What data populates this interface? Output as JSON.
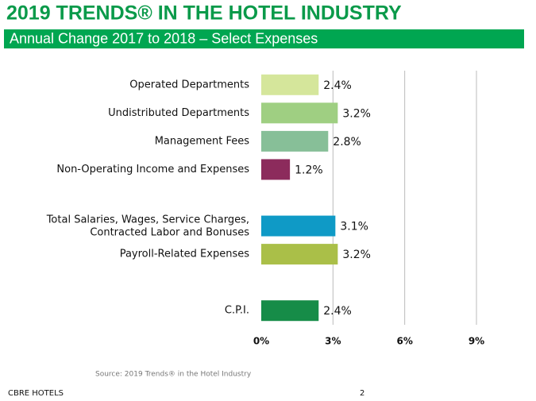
{
  "header": {
    "title": "2019 TRENDS® IN THE HOTEL INDUSTRY",
    "subtitle": "Annual Change 2017 to 2018 – Select Expenses"
  },
  "chart_data": {
    "type": "bar",
    "orientation": "horizontal",
    "categories": [
      "Operated Departments",
      "Undistributed Departments",
      "Management Fees",
      "Non-Operating Income and Expenses",
      null,
      "Total Salaries, Wages, Service Charges,\nContracted Labor and Bonuses",
      "Payroll-Related Expenses",
      null,
      "C.P.I."
    ],
    "values": [
      2.4,
      3.2,
      2.8,
      1.2,
      null,
      3.1,
      3.2,
      null,
      2.4
    ],
    "value_labels": [
      "2.4%",
      "3.2%",
      "2.8%",
      "1.2%",
      null,
      "3.1%",
      "3.2%",
      null,
      "2.4%"
    ],
    "colors": [
      "#d5e69b",
      "#9fcf82",
      "#87bf98",
      "#8c2b5c",
      null,
      "#0f9ac6",
      "#aabf48",
      null,
      "#168c48"
    ],
    "xlim": [
      0,
      9
    ],
    "xticks": [
      {
        "value": 0,
        "label": "0%"
      },
      {
        "value": 3,
        "label": "3%"
      },
      {
        "value": 6,
        "label": "6%"
      },
      {
        "value": 9,
        "label": "9%"
      }
    ],
    "grid": true
  },
  "footer": {
    "source": "Source: 2019 Trends® in the Hotel Industry",
    "company": "CBRE HOTELS",
    "page": "2"
  }
}
